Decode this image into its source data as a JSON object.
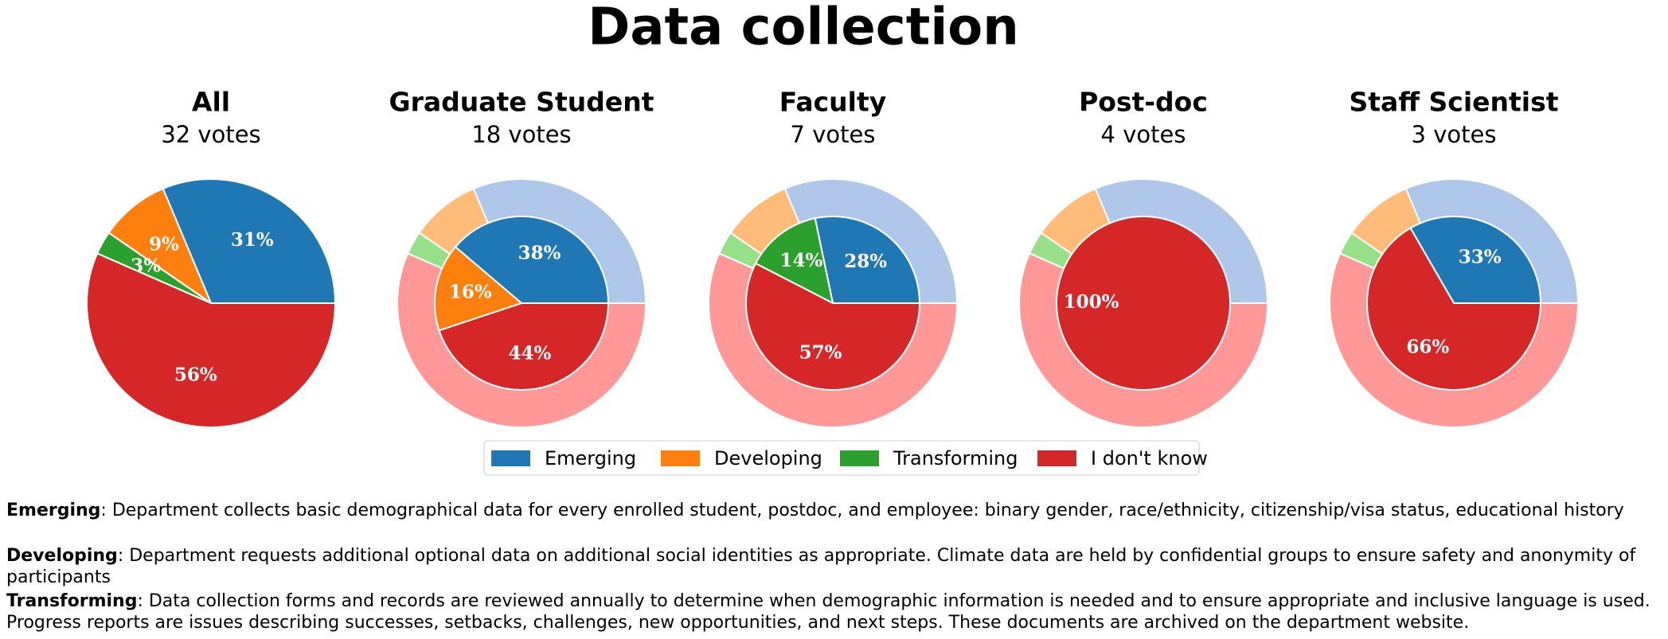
{
  "title": "Data collection",
  "legend": {
    "labels": [
      "Emerging",
      "Developing",
      "Transforming",
      "I don't know"
    ],
    "colors": [
      "#1f77b4",
      "#ff7f0e",
      "#2ca02c",
      "#d62728"
    ],
    "light_colors": [
      "#aec7e8",
      "#ffbb78",
      "#98df8a",
      "#ff9896"
    ]
  },
  "chart_data": [
    {
      "type": "pie",
      "title": "All",
      "subtitle": "32 votes",
      "values": [
        31,
        9,
        3,
        56
      ],
      "value_labels": [
        "31%",
        "9%",
        "3%",
        "56%"
      ]
    },
    {
      "type": "donut",
      "title": "Graduate Student",
      "subtitle": "18 votes",
      "values": [
        38,
        16,
        0,
        44
      ],
      "value_labels": [
        "38%",
        "16%",
        null,
        "44%"
      ]
    },
    {
      "type": "donut",
      "title": "Faculty",
      "subtitle": "7 votes",
      "values": [
        28,
        0,
        14,
        57
      ],
      "value_labels": [
        "28%",
        null,
        "14%",
        "57%"
      ]
    },
    {
      "type": "donut",
      "title": "Post-doc",
      "subtitle": "4 votes",
      "values": [
        0,
        0,
        0,
        100
      ],
      "value_labels": [
        null,
        null,
        null,
        "100%"
      ]
    },
    {
      "type": "donut",
      "title": "Staff Scientist",
      "subtitle": "3 votes",
      "values": [
        33,
        0,
        0,
        66
      ],
      "value_labels": [
        "33%",
        null,
        null,
        "66%"
      ]
    }
  ],
  "descriptions": [
    {
      "term": "Emerging",
      "text": ": Department collects basic demographical data for every enrolled student, postdoc, and employee: binary gender, race/ethnicity, citizenship/visa status, educational history"
    },
    {
      "term": "Developing",
      "text": ": Department requests additional optional data on additional social identities as appropriate. Climate data are held by confidential groups to ensure safety and anonymity of participants"
    },
    {
      "term": "Transforming",
      "text": ": Data collection forms and records are reviewed annually to determine when demographic information is needed and to ensure appropriate and inclusive language is used. Progress reports are issues describing successes, setbacks, challenges, new opportunities, and next steps. These documents are archived on the department website."
    }
  ]
}
